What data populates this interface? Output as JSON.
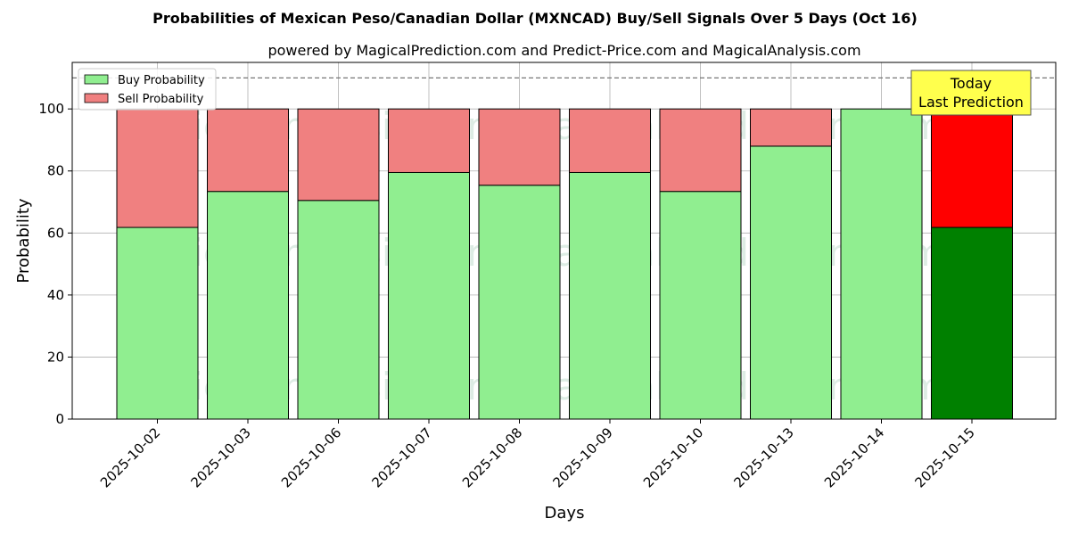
{
  "chart_data": {
    "type": "bar",
    "stacked": true,
    "title": "Probabilities of Mexican Peso/Canadian Dollar (MXNCAD) Buy/Sell Signals Over 5 Days (Oct 16)",
    "subtitle": "powered by MagicalPrediction.com and Predict-Price.com and MagicalAnalysis.com",
    "xlabel": "Days",
    "ylabel": "Probability",
    "ylim": [
      0,
      115
    ],
    "yticks": [
      0,
      20,
      40,
      60,
      80,
      100
    ],
    "reference_line": 110,
    "grid": true,
    "legend_position": "top-left",
    "categories": [
      "2025-10-02",
      "2025-10-03",
      "2025-10-06",
      "2025-10-07",
      "2025-10-08",
      "2025-10-09",
      "2025-10-10",
      "2025-10-13",
      "2025-10-14",
      "2025-10-15"
    ],
    "series": [
      {
        "name": "Buy Probability",
        "color": "#90ee90",
        "highlight_color": "#008000",
        "values": [
          61.8,
          73.4,
          70.5,
          79.5,
          75.4,
          79.5,
          73.4,
          88.0,
          100.0,
          61.8
        ]
      },
      {
        "name": "Sell Probability",
        "color": "#f08080",
        "highlight_color": "#ff0000",
        "values": [
          38.2,
          26.6,
          29.5,
          20.5,
          24.6,
          20.5,
          26.6,
          12.0,
          0.0,
          38.2
        ]
      }
    ],
    "highlight_index": 9,
    "annotation": {
      "line1": "Today",
      "line2": "Last Prediction",
      "color": "#ffff4d"
    },
    "watermarks": [
      "MagicalAnalysis.com",
      "MagicalPrediction.com"
    ]
  }
}
